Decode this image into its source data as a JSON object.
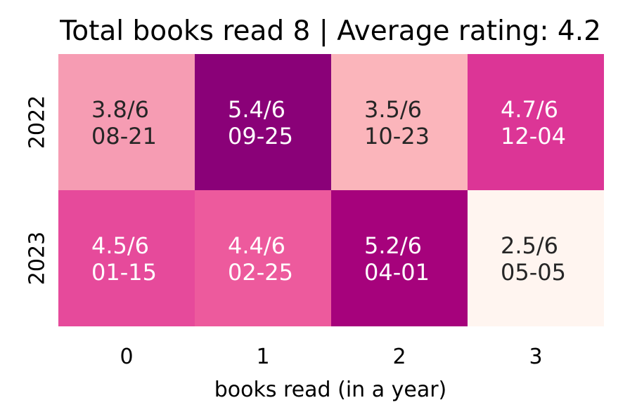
{
  "chart_data": {
    "type": "heatmap",
    "title": "Total books read 8 | Average rating: 4.2",
    "xlabel": "books read (in a year)",
    "ylabel": "",
    "x_categories": [
      "0",
      "1",
      "2",
      "3"
    ],
    "y_categories": [
      "2022",
      "2023"
    ],
    "values": [
      [
        3.8,
        5.4,
        3.5,
        4.7
      ],
      [
        4.5,
        4.4,
        5.2,
        2.5
      ]
    ],
    "annotations": [
      [
        "3.8/6\n08-21",
        "5.4/6\n09-25",
        "3.5/6\n10-23",
        "4.7/6\n12-04"
      ],
      [
        "4.5/6\n01-15",
        "4.4/6\n02-25",
        "5.2/6\n04-01",
        "2.5/6\n05-05"
      ]
    ],
    "colormap": "RdPu",
    "grid": false,
    "colorbar": false,
    "colors": {
      "cells": [
        [
          "#f69cb3",
          "#8a0178",
          "#fbb5bb",
          "#dc3596"
        ],
        [
          "#e64a9b",
          "#ed5a9d",
          "#a6027c",
          "#fff5f0"
        ]
      ],
      "text_on_light": "#262626",
      "text_on_dark": "#ffffff"
    }
  }
}
